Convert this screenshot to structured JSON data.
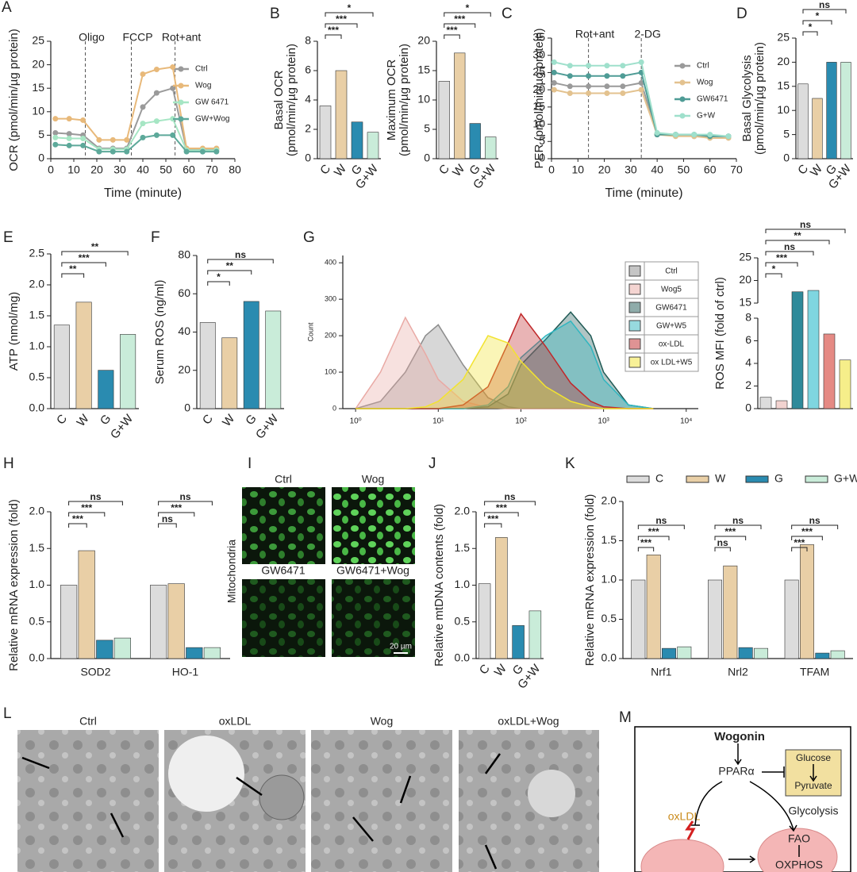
{
  "chart_data": [
    {
      "type": "line",
      "panel": "A",
      "ylabel": "OCR (pmol/min/µg protein)",
      "xlabel": "Time (minute)",
      "x": [
        2,
        8,
        14,
        21,
        27,
        33,
        40,
        46,
        53,
        59,
        66,
        72
      ],
      "series": [
        {
          "name": "Ctrl",
          "color": "#9a9a9a",
          "values": [
            5.5,
            5.3,
            5.0,
            2.2,
            2.2,
            2.2,
            11,
            14,
            15,
            2,
            2,
            2
          ]
        },
        {
          "name": "Wog",
          "color": "#e8b97a",
          "values": [
            8.5,
            8.5,
            8.2,
            4,
            4,
            4,
            18,
            19,
            19.5,
            2.2,
            2.2,
            2.2
          ]
        },
        {
          "name": "GW 6471",
          "color": "#a6e6c4",
          "values": [
            4.5,
            4.3,
            4.3,
            2,
            2,
            2,
            7.5,
            8,
            8.5,
            1.8,
            1.8,
            1.8
          ]
        },
        {
          "name": "GW+Wog",
          "color": "#5da99a",
          "values": [
            3,
            2.8,
            2.8,
            1.5,
            1.5,
            1.5,
            4.5,
            5,
            5,
            1.5,
            1.5,
            1.5
          ]
        }
      ],
      "events": [
        {
          "x": 15,
          "label": "Oligo"
        },
        {
          "x": 35,
          "label": "FCCP"
        },
        {
          "x": 54,
          "label": "Rot+ant"
        }
      ],
      "xlim": [
        0,
        80
      ],
      "xticks": [
        0,
        10,
        20,
        30,
        40,
        50,
        60,
        70,
        80
      ],
      "ylim": [
        0,
        25
      ],
      "yticks": [
        0,
        5,
        10,
        15,
        20,
        25
      ],
      "legend": "upper right"
    },
    {
      "type": "bar",
      "panel": "B",
      "ylabel": [
        "Basal OCR",
        "(pmol/min/µg protein)"
      ],
      "categories": [
        "C",
        "W",
        "G",
        "G+W"
      ],
      "values": [
        3.6,
        6.0,
        2.5,
        1.8
      ],
      "colors": [
        "#dcdcdc",
        "#e9cfa6",
        "#2a8bb0",
        "#c9ecd9"
      ],
      "ylim": [
        0,
        8
      ],
      "yticks": [
        0,
        2,
        4,
        6,
        8
      ],
      "significance": [
        "***",
        "***",
        "*"
      ]
    },
    {
      "type": "bar",
      "ylabel": [
        "Maximum OCR",
        "(pmol/min/µg protein)"
      ],
      "categories": [
        "C",
        "W",
        "G",
        "G+W"
      ],
      "values": [
        13.2,
        18,
        6,
        3.7
      ],
      "colors": [
        "#dcdcdc",
        "#e9cfa6",
        "#2a8bb0",
        "#c9ecd9"
      ],
      "ylim": [
        0,
        20
      ],
      "yticks": [
        0,
        5,
        10,
        15,
        20
      ],
      "significance": [
        "***",
        "***",
        "*"
      ]
    },
    {
      "type": "line",
      "panel": "C",
      "ylabel": "PER (pmol/min/µg protein)",
      "xlabel": "Time (minute)",
      "x": [
        1,
        7,
        14,
        21,
        27,
        34,
        40,
        47,
        54,
        60,
        67
      ],
      "series": [
        {
          "name": "Ctrl",
          "color": "#9a9a9a",
          "values": [
            22,
            21,
            21,
            21,
            21,
            22,
            7,
            7,
            6.5,
            6.5,
            6.5
          ]
        },
        {
          "name": "Wog",
          "color": "#e3c28f",
          "values": [
            20,
            19,
            19,
            19,
            19,
            20,
            7,
            6.5,
            6.5,
            6,
            6
          ]
        },
        {
          "name": "GW6471",
          "color": "#4f9c96",
          "values": [
            25,
            24,
            24,
            24,
            24,
            25,
            7,
            7,
            7,
            6.5,
            6.5
          ]
        },
        {
          "name": "G+W",
          "color": "#9fe0cc",
          "values": [
            28,
            27,
            27,
            27,
            27,
            28,
            7.5,
            7,
            7,
            7,
            6.5
          ]
        }
      ],
      "events": [
        {
          "x": 14,
          "label": "Rot+ant"
        },
        {
          "x": 34,
          "label": "2-DG"
        }
      ],
      "xlim": [
        0,
        70
      ],
      "xticks": [
        0,
        10,
        20,
        30,
        40,
        50,
        60,
        70
      ],
      "ylim": [
        0,
        35
      ],
      "yticks": [
        0,
        5,
        10,
        15,
        20,
        25,
        30,
        35
      ],
      "legend": "upper right"
    },
    {
      "type": "bar",
      "panel": "D",
      "ylabel": [
        "Basal Glycolysis",
        "(pmol/min/µg protein)"
      ],
      "categories": [
        "C",
        "W",
        "G",
        "G+W"
      ],
      "values": [
        15.5,
        12.5,
        20,
        20
      ],
      "colors": [
        "#dcdcdc",
        "#e9cfa6",
        "#2a8bb0",
        "#c9ecd9"
      ],
      "ylim": [
        0,
        25
      ],
      "yticks": [
        0,
        5,
        10,
        15,
        20,
        25
      ],
      "significance": [
        "*",
        "*",
        "ns"
      ]
    },
    {
      "type": "bar",
      "panel": "E",
      "ylabel": "ATP (nmol/mg)",
      "categories": [
        "C",
        "W",
        "G",
        "G+W"
      ],
      "values": [
        1.35,
        1.72,
        0.62,
        1.2
      ],
      "colors": [
        "#dcdcdc",
        "#e9cfa6",
        "#2a8bb0",
        "#c9ecd9"
      ],
      "ylim": [
        0,
        2.5
      ],
      "yticks": [
        {
          "value": 0,
          "label": "0.0"
        },
        0.5,
        {
          "value": 1,
          "label": "1.0"
        },
        1.5,
        {
          "value": 2,
          "label": "2.0"
        },
        2.5
      ],
      "significance": [
        "**",
        "***",
        "**"
      ]
    },
    {
      "type": "bar",
      "panel": "F",
      "ylabel": "Serum ROS (ng/ml)",
      "categories": [
        "C",
        "W",
        "G",
        "G+W"
      ],
      "values": [
        45,
        37,
        56,
        51
      ],
      "colors": [
        "#dcdcdc",
        "#e9cfa6",
        "#2a8bb0",
        "#c9ecd9"
      ],
      "ylim": [
        0,
        80
      ],
      "yticks": [
        0,
        20,
        40,
        60,
        80
      ],
      "significance": [
        "*",
        "**",
        "ns"
      ]
    },
    {
      "type": "area",
      "panel": "G",
      "ylabel": "Count",
      "xscale": "log",
      "x": [
        1,
        2,
        4,
        7,
        10,
        20,
        40,
        70,
        100,
        200,
        400,
        700,
        1000,
        2000,
        4000
      ],
      "series": [
        {
          "name": "Ctrl",
          "color": "#8c8c8c",
          "values": [
            0,
            20,
            100,
            200,
            230,
            120,
            30,
            5,
            0,
            0,
            0,
            0,
            0,
            0,
            0
          ]
        },
        {
          "name": "Wog5",
          "color": "#e9a9a4",
          "values": [
            0,
            100,
            250,
            150,
            80,
            20,
            3,
            0,
            0,
            0,
            0,
            0,
            0,
            0,
            0
          ]
        },
        {
          "name": "GW6471",
          "color": "#1f5a55",
          "values": [
            0,
            0,
            0,
            0,
            0,
            0,
            5,
            40,
            120,
            190,
            265,
            200,
            100,
            10,
            0
          ]
        },
        {
          "name": "GW+W5",
          "color": "#2fb6c0",
          "values": [
            0,
            0,
            0,
            0,
            0,
            0,
            10,
            60,
            140,
            200,
            240,
            170,
            80,
            10,
            0
          ]
        },
        {
          "name": "ox-LDL",
          "color": "#c0282a",
          "values": [
            0,
            0,
            0,
            0,
            0,
            10,
            60,
            180,
            260,
            170,
            70,
            20,
            5,
            0,
            0
          ]
        },
        {
          "name": "ox LDL+W5",
          "color": "#f2e330",
          "values": [
            0,
            0,
            0,
            5,
            20,
            80,
            200,
            180,
            130,
            60,
            20,
            5,
            0,
            0,
            0
          ]
        }
      ],
      "xlim": [
        0.7,
        14000
      ],
      "xticks": [
        {
          "value": 1,
          "label": "10⁰"
        },
        {
          "value": 10,
          "label": "10¹"
        },
        {
          "value": 100,
          "label": "10²"
        },
        {
          "value": 1000,
          "label": "10³"
        },
        {
          "value": 10000,
          "label": "10⁴"
        }
      ],
      "ylim": [
        0,
        420
      ],
      "yticks": [
        0,
        100,
        200,
        300,
        400
      ],
      "legend": "upper right"
    },
    {
      "type": "bar",
      "ylabel": "ROS MFI (fold of ctrl)",
      "values": [
        1.0,
        0.7,
        17.5,
        17.8,
        6.6,
        4.3
      ],
      "colors": [
        "#dcdcdc",
        "#f2d3d0",
        "#2f8a9a",
        "#7fd6e0",
        "#e58a84",
        "#f6ee8a"
      ],
      "ylim": [
        0,
        25
      ],
      "ybreak": [
        8,
        15
      ],
      "yticks": [
        0,
        2,
        4,
        6,
        8,
        15,
        20,
        25
      ],
      "significance": [
        "*",
        "***",
        "ns",
        "**",
        "ns"
      ]
    },
    {
      "type": "bar",
      "panel": "H",
      "ylabel": "Relative mRNA expression (fold)",
      "categories": [
        "SOD2",
        "HO-1"
      ],
      "series": [
        {
          "name": "C",
          "color": "#dcdcdc",
          "values": [
            1.0,
            1.0
          ]
        },
        {
          "name": "W",
          "color": "#e9cfa6",
          "values": [
            1.47,
            1.02
          ]
        },
        {
          "name": "G",
          "color": "#2a8bb0",
          "values": [
            0.25,
            0.15
          ]
        },
        {
          "name": "G+W",
          "color": "#c9ecd9",
          "values": [
            0.28,
            0.15
          ]
        }
      ],
      "ylim": [
        0,
        2
      ],
      "yticks": [
        {
          "value": 0,
          "label": "0.0"
        },
        0.5,
        {
          "value": 1,
          "label": "1.0"
        },
        1.5,
        {
          "value": 2,
          "label": "2.0"
        }
      ],
      "significance": [
        [
          "***",
          "***",
          "ns"
        ],
        [
          "ns",
          "***",
          "ns"
        ]
      ]
    },
    {
      "type": "bar",
      "panel": "J",
      "ylabel": "Relative mtDNA contents (fold)",
      "categories": [
        "C",
        "W",
        "G",
        "G+W"
      ],
      "values": [
        1.02,
        1.65,
        0.45,
        0.65
      ],
      "colors": [
        "#dcdcdc",
        "#e9cfa6",
        "#2a8bb0",
        "#c9ecd9"
      ],
      "ylim": [
        0,
        2
      ],
      "yticks": [
        {
          "value": 0,
          "label": "0.0"
        },
        0.5,
        {
          "value": 1,
          "label": "1.0"
        },
        1.5,
        {
          "value": 2,
          "label": "2.0"
        }
      ],
      "significance": [
        "***",
        "***",
        "ns"
      ]
    },
    {
      "type": "bar",
      "panel": "K",
      "ylabel": "Relative mRNA expression (fold)",
      "categories": [
        "Nrf1",
        "Nrl2",
        "TFAM"
      ],
      "series": [
        {
          "name": "C",
          "color": "#dcdcdc",
          "values": [
            1.0,
            1.0,
            1.0
          ]
        },
        {
          "name": "W",
          "color": "#e9cfa6",
          "values": [
            1.32,
            1.18,
            1.45
          ]
        },
        {
          "name": "G",
          "color": "#2a8bb0",
          "values": [
            0.13,
            0.14,
            0.07
          ]
        },
        {
          "name": "G+W",
          "color": "#c9ecd9",
          "values": [
            0.15,
            0.13,
            0.1
          ]
        }
      ],
      "ylim": [
        0,
        2
      ],
      "yticks": [
        {
          "value": 0,
          "label": "0.0"
        },
        0.5,
        {
          "value": 1,
          "label": "1.0"
        },
        1.5,
        {
          "value": 2,
          "label": "2.0"
        }
      ],
      "significance": [
        [
          "***",
          "***",
          "ns"
        ],
        [
          "ns",
          "***",
          "ns"
        ],
        [
          "***",
          "***",
          "ns"
        ]
      ],
      "legend": "top"
    }
  ],
  "images_I": {
    "panel": "I",
    "row_label": "Mitochondria",
    "labels": [
      "Ctrl",
      "Wog",
      "GW6471",
      "GW6471+Wog"
    ],
    "scale_bar": "20 µm"
  },
  "images_L": {
    "panel": "L",
    "labels": [
      "Ctrl",
      "oxLDL",
      "Wog",
      "oxLDL+Wog"
    ]
  },
  "diagram": {
    "panel": "M",
    "nodes": [
      "Wogonin",
      "PPARα",
      "Glucose",
      "Pyruvate",
      "Glycolysis",
      "oxLDL",
      "FAO",
      "OXPHOS"
    ]
  }
}
